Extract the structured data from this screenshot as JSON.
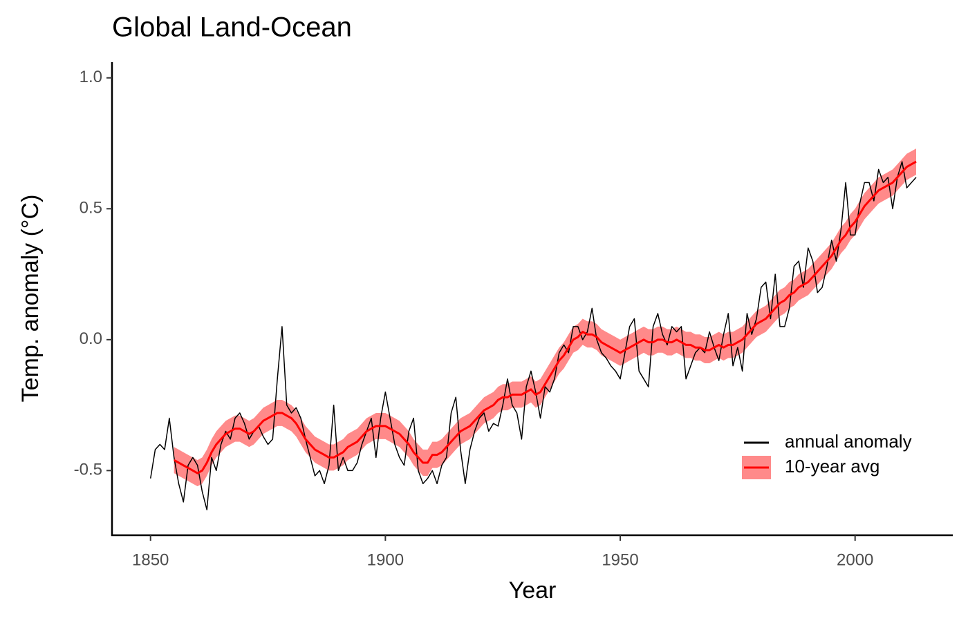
{
  "chart_data": {
    "type": "line",
    "title": "Global Land-Ocean",
    "x_label": "Year",
    "y_label": "Temp. anomaly (°C)",
    "xlim": [
      1841.8,
      2020.8
    ],
    "ylim": [
      -0.747,
      1.06
    ],
    "xticks": [
      1850,
      1900,
      1950,
      2000
    ],
    "yticks": [
      -0.5,
      {
        "value": 0,
        "label": "0.0"
      },
      0.5,
      {
        "value": 1,
        "label": "1.0"
      }
    ],
    "legend": "bottom-right",
    "x": [
      1850,
      1851,
      1852,
      1853,
      1854,
      1855,
      1856,
      1857,
      1858,
      1859,
      1860,
      1861,
      1862,
      1863,
      1864,
      1865,
      1866,
      1867,
      1868,
      1869,
      1870,
      1871,
      1872,
      1873,
      1874,
      1875,
      1876,
      1877,
      1878,
      1879,
      1880,
      1881,
      1882,
      1883,
      1884,
      1885,
      1886,
      1887,
      1888,
      1889,
      1890,
      1891,
      1892,
      1893,
      1894,
      1895,
      1896,
      1897,
      1898,
      1899,
      1900,
      1901,
      1902,
      1903,
      1904,
      1905,
      1906,
      1907,
      1908,
      1909,
      1910,
      1911,
      1912,
      1913,
      1914,
      1915,
      1916,
      1917,
      1918,
      1919,
      1920,
      1921,
      1922,
      1923,
      1924,
      1925,
      1926,
      1927,
      1928,
      1929,
      1930,
      1931,
      1932,
      1933,
      1934,
      1935,
      1936,
      1937,
      1938,
      1939,
      1940,
      1941,
      1942,
      1943,
      1944,
      1945,
      1946,
      1947,
      1948,
      1949,
      1950,
      1951,
      1952,
      1953,
      1954,
      1955,
      1956,
      1957,
      1958,
      1959,
      1960,
      1961,
      1962,
      1963,
      1964,
      1965,
      1966,
      1967,
      1968,
      1969,
      1970,
      1971,
      1972,
      1973,
      1974,
      1975,
      1976,
      1977,
      1978,
      1979,
      1980,
      1981,
      1982,
      1983,
      1984,
      1985,
      1986,
      1987,
      1988,
      1989,
      1990,
      1991,
      1992,
      1993,
      1994,
      1995,
      1996,
      1997,
      1998,
      1999,
      2000,
      2001,
      2002,
      2003,
      2004,
      2005,
      2006,
      2007,
      2008,
      2009,
      2010,
      2011,
      2012,
      2013
    ],
    "series": [
      {
        "name": "annual anomaly",
        "color": "#000000",
        "values": [
          -0.53,
          -0.42,
          -0.4,
          -0.42,
          -0.3,
          -0.45,
          -0.55,
          -0.62,
          -0.48,
          -0.45,
          -0.48,
          -0.58,
          -0.65,
          -0.45,
          -0.5,
          -0.4,
          -0.35,
          -0.38,
          -0.3,
          -0.28,
          -0.32,
          -0.38,
          -0.35,
          -0.33,
          -0.37,
          -0.4,
          -0.38,
          -0.15,
          0.05,
          -0.25,
          -0.28,
          -0.26,
          -0.3,
          -0.38,
          -0.45,
          -0.52,
          -0.5,
          -0.55,
          -0.48,
          -0.25,
          -0.5,
          -0.45,
          -0.5,
          -0.5,
          -0.47,
          -0.4,
          -0.35,
          -0.3,
          -0.45,
          -0.3,
          -0.2,
          -0.3,
          -0.4,
          -0.45,
          -0.48,
          -0.35,
          -0.3,
          -0.5,
          -0.55,
          -0.53,
          -0.5,
          -0.55,
          -0.48,
          -0.45,
          -0.28,
          -0.22,
          -0.42,
          -0.55,
          -0.42,
          -0.35,
          -0.3,
          -0.28,
          -0.35,
          -0.32,
          -0.33,
          -0.25,
          -0.15,
          -0.25,
          -0.28,
          -0.38,
          -0.18,
          -0.12,
          -0.2,
          -0.3,
          -0.18,
          -0.2,
          -0.15,
          -0.05,
          -0.02,
          -0.05,
          0.05,
          0.05,
          0.0,
          0.03,
          0.12,
          0.0,
          -0.05,
          -0.07,
          -0.1,
          -0.12,
          -0.15,
          -0.05,
          0.05,
          0.08,
          -0.12,
          -0.15,
          -0.18,
          0.05,
          0.1,
          0.02,
          -0.02,
          0.05,
          0.03,
          0.05,
          -0.15,
          -0.1,
          -0.05,
          -0.03,
          -0.05,
          0.03,
          -0.03,
          -0.08,
          0.02,
          0.1,
          -0.1,
          -0.03,
          -0.12,
          0.1,
          0.02,
          0.08,
          0.2,
          0.22,
          0.08,
          0.25,
          0.05,
          0.05,
          0.12,
          0.28,
          0.3,
          0.2,
          0.35,
          0.3,
          0.18,
          0.2,
          0.28,
          0.38,
          0.3,
          0.42,
          0.6,
          0.4,
          0.4,
          0.52,
          0.6,
          0.6,
          0.53,
          0.65,
          0.6,
          0.62,
          0.5,
          0.62,
          0.68,
          0.58,
          0.6,
          0.62
        ]
      },
      {
        "name": "10-year avg",
        "color": "#ff0000",
        "band_color": "#ff8a8a",
        "values": [
          null,
          null,
          null,
          null,
          null,
          -0.46,
          -0.47,
          -0.48,
          -0.49,
          -0.5,
          -0.51,
          -0.5,
          -0.47,
          -0.43,
          -0.4,
          -0.38,
          -0.36,
          -0.35,
          -0.34,
          -0.34,
          -0.35,
          -0.36,
          -0.35,
          -0.33,
          -0.31,
          -0.3,
          -0.29,
          -0.28,
          -0.28,
          -0.29,
          -0.3,
          -0.32,
          -0.35,
          -0.38,
          -0.4,
          -0.42,
          -0.43,
          -0.44,
          -0.45,
          -0.45,
          -0.44,
          -0.43,
          -0.41,
          -0.4,
          -0.39,
          -0.37,
          -0.35,
          -0.34,
          -0.33,
          -0.33,
          -0.33,
          -0.34,
          -0.35,
          -0.36,
          -0.38,
          -0.4,
          -0.43,
          -0.45,
          -0.47,
          -0.47,
          -0.44,
          -0.44,
          -0.43,
          -0.41,
          -0.39,
          -0.37,
          -0.35,
          -0.34,
          -0.33,
          -0.31,
          -0.29,
          -0.27,
          -0.26,
          -0.25,
          -0.23,
          -0.22,
          -0.22,
          -0.21,
          -0.21,
          -0.21,
          -0.2,
          -0.19,
          -0.21,
          -0.2,
          -0.17,
          -0.14,
          -0.11,
          -0.08,
          -0.06,
          -0.03,
          0.0,
          0.01,
          0.03,
          0.02,
          0.02,
          0.01,
          -0.01,
          -0.02,
          -0.03,
          -0.04,
          -0.05,
          -0.04,
          -0.03,
          -0.02,
          -0.01,
          0.0,
          -0.01,
          -0.01,
          0.0,
          0.0,
          -0.01,
          -0.01,
          0.0,
          -0.01,
          -0.02,
          -0.02,
          -0.03,
          -0.03,
          -0.04,
          -0.04,
          -0.03,
          -0.02,
          -0.03,
          -0.02,
          -0.02,
          -0.01,
          0.0,
          0.02,
          0.04,
          0.06,
          0.07,
          0.08,
          0.1,
          0.12,
          0.14,
          0.15,
          0.17,
          0.18,
          0.2,
          0.21,
          0.22,
          0.24,
          0.26,
          0.28,
          0.3,
          0.32,
          0.35,
          0.38,
          0.4,
          0.43,
          0.45,
          0.48,
          0.51,
          0.53,
          0.55,
          0.57,
          0.58,
          0.59,
          0.6,
          0.62,
          0.64,
          0.66,
          0.67,
          0.68
        ],
        "lower": [
          null,
          null,
          null,
          null,
          null,
          -0.51,
          -0.52,
          -0.53,
          -0.54,
          -0.55,
          -0.56,
          -0.55,
          -0.52,
          -0.48,
          -0.45,
          -0.43,
          -0.41,
          -0.4,
          -0.39,
          -0.39,
          -0.4,
          -0.41,
          -0.4,
          -0.38,
          -0.36,
          -0.35,
          -0.34,
          -0.33,
          -0.33,
          -0.34,
          -0.35,
          -0.37,
          -0.4,
          -0.43,
          -0.45,
          -0.47,
          -0.48,
          -0.49,
          -0.5,
          -0.5,
          -0.49,
          -0.48,
          -0.46,
          -0.45,
          -0.44,
          -0.42,
          -0.4,
          -0.39,
          -0.38,
          -0.38,
          -0.38,
          -0.39,
          -0.4,
          -0.41,
          -0.43,
          -0.45,
          -0.48,
          -0.5,
          -0.52,
          -0.52,
          -0.49,
          -0.49,
          -0.48,
          -0.46,
          -0.44,
          -0.42,
          -0.4,
          -0.39,
          -0.38,
          -0.36,
          -0.34,
          -0.32,
          -0.31,
          -0.3,
          -0.28,
          -0.27,
          -0.27,
          -0.26,
          -0.26,
          -0.26,
          -0.25,
          -0.24,
          -0.26,
          -0.25,
          -0.22,
          -0.19,
          -0.16,
          -0.13,
          -0.11,
          -0.08,
          -0.05,
          -0.04,
          -0.02,
          -0.03,
          -0.03,
          -0.04,
          -0.06,
          -0.07,
          -0.08,
          -0.09,
          -0.1,
          -0.09,
          -0.08,
          -0.07,
          -0.06,
          -0.05,
          -0.06,
          -0.06,
          -0.05,
          -0.05,
          -0.06,
          -0.06,
          -0.05,
          -0.06,
          -0.07,
          -0.07,
          -0.08,
          -0.08,
          -0.09,
          -0.09,
          -0.08,
          -0.07,
          -0.08,
          -0.07,
          -0.07,
          -0.06,
          -0.05,
          -0.03,
          -0.01,
          0.01,
          0.02,
          0.03,
          0.05,
          0.07,
          0.09,
          0.1,
          0.12,
          0.13,
          0.15,
          0.16,
          0.17,
          0.19,
          0.21,
          0.23,
          0.25,
          0.27,
          0.3,
          0.33,
          0.35,
          0.38,
          0.4,
          0.43,
          0.46,
          0.48,
          0.5,
          0.52,
          0.53,
          0.54,
          0.55,
          0.57,
          0.59,
          0.61,
          0.62,
          0.63
        ],
        "upper": [
          null,
          null,
          null,
          null,
          null,
          -0.41,
          -0.42,
          -0.43,
          -0.44,
          -0.45,
          -0.46,
          -0.45,
          -0.42,
          -0.38,
          -0.35,
          -0.33,
          -0.31,
          -0.3,
          -0.29,
          -0.29,
          -0.3,
          -0.31,
          -0.3,
          -0.28,
          -0.26,
          -0.25,
          -0.24,
          -0.23,
          -0.23,
          -0.24,
          -0.25,
          -0.27,
          -0.3,
          -0.33,
          -0.35,
          -0.37,
          -0.38,
          -0.39,
          -0.4,
          -0.4,
          -0.39,
          -0.38,
          -0.36,
          -0.35,
          -0.34,
          -0.32,
          -0.3,
          -0.29,
          -0.28,
          -0.28,
          -0.28,
          -0.29,
          -0.3,
          -0.31,
          -0.33,
          -0.35,
          -0.38,
          -0.4,
          -0.42,
          -0.42,
          -0.39,
          -0.39,
          -0.38,
          -0.36,
          -0.34,
          -0.32,
          -0.3,
          -0.29,
          -0.28,
          -0.26,
          -0.24,
          -0.22,
          -0.21,
          -0.2,
          -0.18,
          -0.17,
          -0.17,
          -0.16,
          -0.16,
          -0.16,
          -0.15,
          -0.14,
          -0.16,
          -0.15,
          -0.12,
          -0.09,
          -0.06,
          -0.03,
          -0.01,
          0.02,
          0.05,
          0.06,
          0.08,
          0.07,
          0.07,
          0.06,
          0.04,
          0.03,
          0.02,
          0.01,
          0.0,
          0.01,
          0.02,
          0.03,
          0.04,
          0.05,
          0.04,
          0.04,
          0.05,
          0.05,
          0.04,
          0.04,
          0.05,
          0.04,
          0.03,
          0.03,
          0.02,
          0.02,
          0.01,
          0.01,
          0.02,
          0.03,
          0.02,
          0.03,
          0.03,
          0.04,
          0.05,
          0.07,
          0.09,
          0.11,
          0.12,
          0.13,
          0.15,
          0.17,
          0.19,
          0.2,
          0.22,
          0.23,
          0.25,
          0.26,
          0.27,
          0.29,
          0.31,
          0.33,
          0.35,
          0.37,
          0.4,
          0.43,
          0.45,
          0.48,
          0.5,
          0.53,
          0.56,
          0.58,
          0.6,
          0.62,
          0.63,
          0.64,
          0.65,
          0.67,
          0.69,
          0.71,
          0.72,
          0.73
        ]
      }
    ]
  }
}
